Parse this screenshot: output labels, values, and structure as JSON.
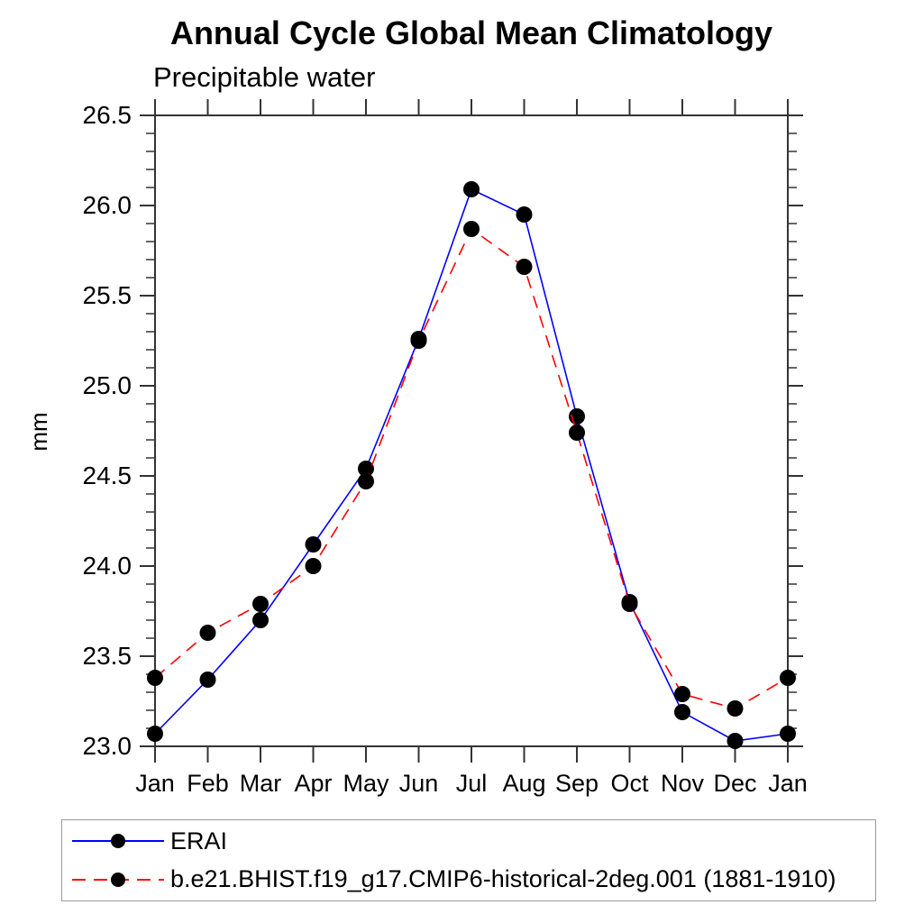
{
  "title": "Annual Cycle Global Mean Climatology",
  "subtitle": "Precipitable water",
  "chart_data": {
    "type": "line",
    "x_categories": [
      "Jan",
      "Feb",
      "Mar",
      "Apr",
      "May",
      "Jun",
      "Jul",
      "Aug",
      "Sep",
      "Oct",
      "Nov",
      "Dec",
      "Jan"
    ],
    "ylabel": "mm",
    "ylim": [
      23.0,
      26.5
    ],
    "ytick_step": 0.5,
    "yminor_step": 0.1,
    "ytick_labels": [
      "23.0",
      "23.5",
      "24.0",
      "24.5",
      "25.0",
      "25.5",
      "26.0",
      "26.5"
    ],
    "grid": false,
    "legend_position": "bottom",
    "axis_color": "#333333",
    "marker_color": "#000000",
    "series": [
      {
        "name": "ERAI",
        "color": "#0000ff",
        "line_style": "solid",
        "marker": "circle",
        "values": [
          23.07,
          23.37,
          23.7,
          24.12,
          24.54,
          25.26,
          26.09,
          25.95,
          24.83,
          23.8,
          23.19,
          23.03,
          23.07
        ]
      },
      {
        "name": "b.e21.BHIST.f19_g17.CMIP6-historical-2deg.001 (1881-1910)",
        "color": "#ff0000",
        "line_style": "dashed",
        "marker": "circle",
        "values": [
          23.38,
          23.63,
          23.79,
          24.0,
          24.47,
          25.25,
          25.87,
          25.66,
          24.74,
          23.79,
          23.29,
          23.21,
          23.38
        ]
      }
    ]
  }
}
